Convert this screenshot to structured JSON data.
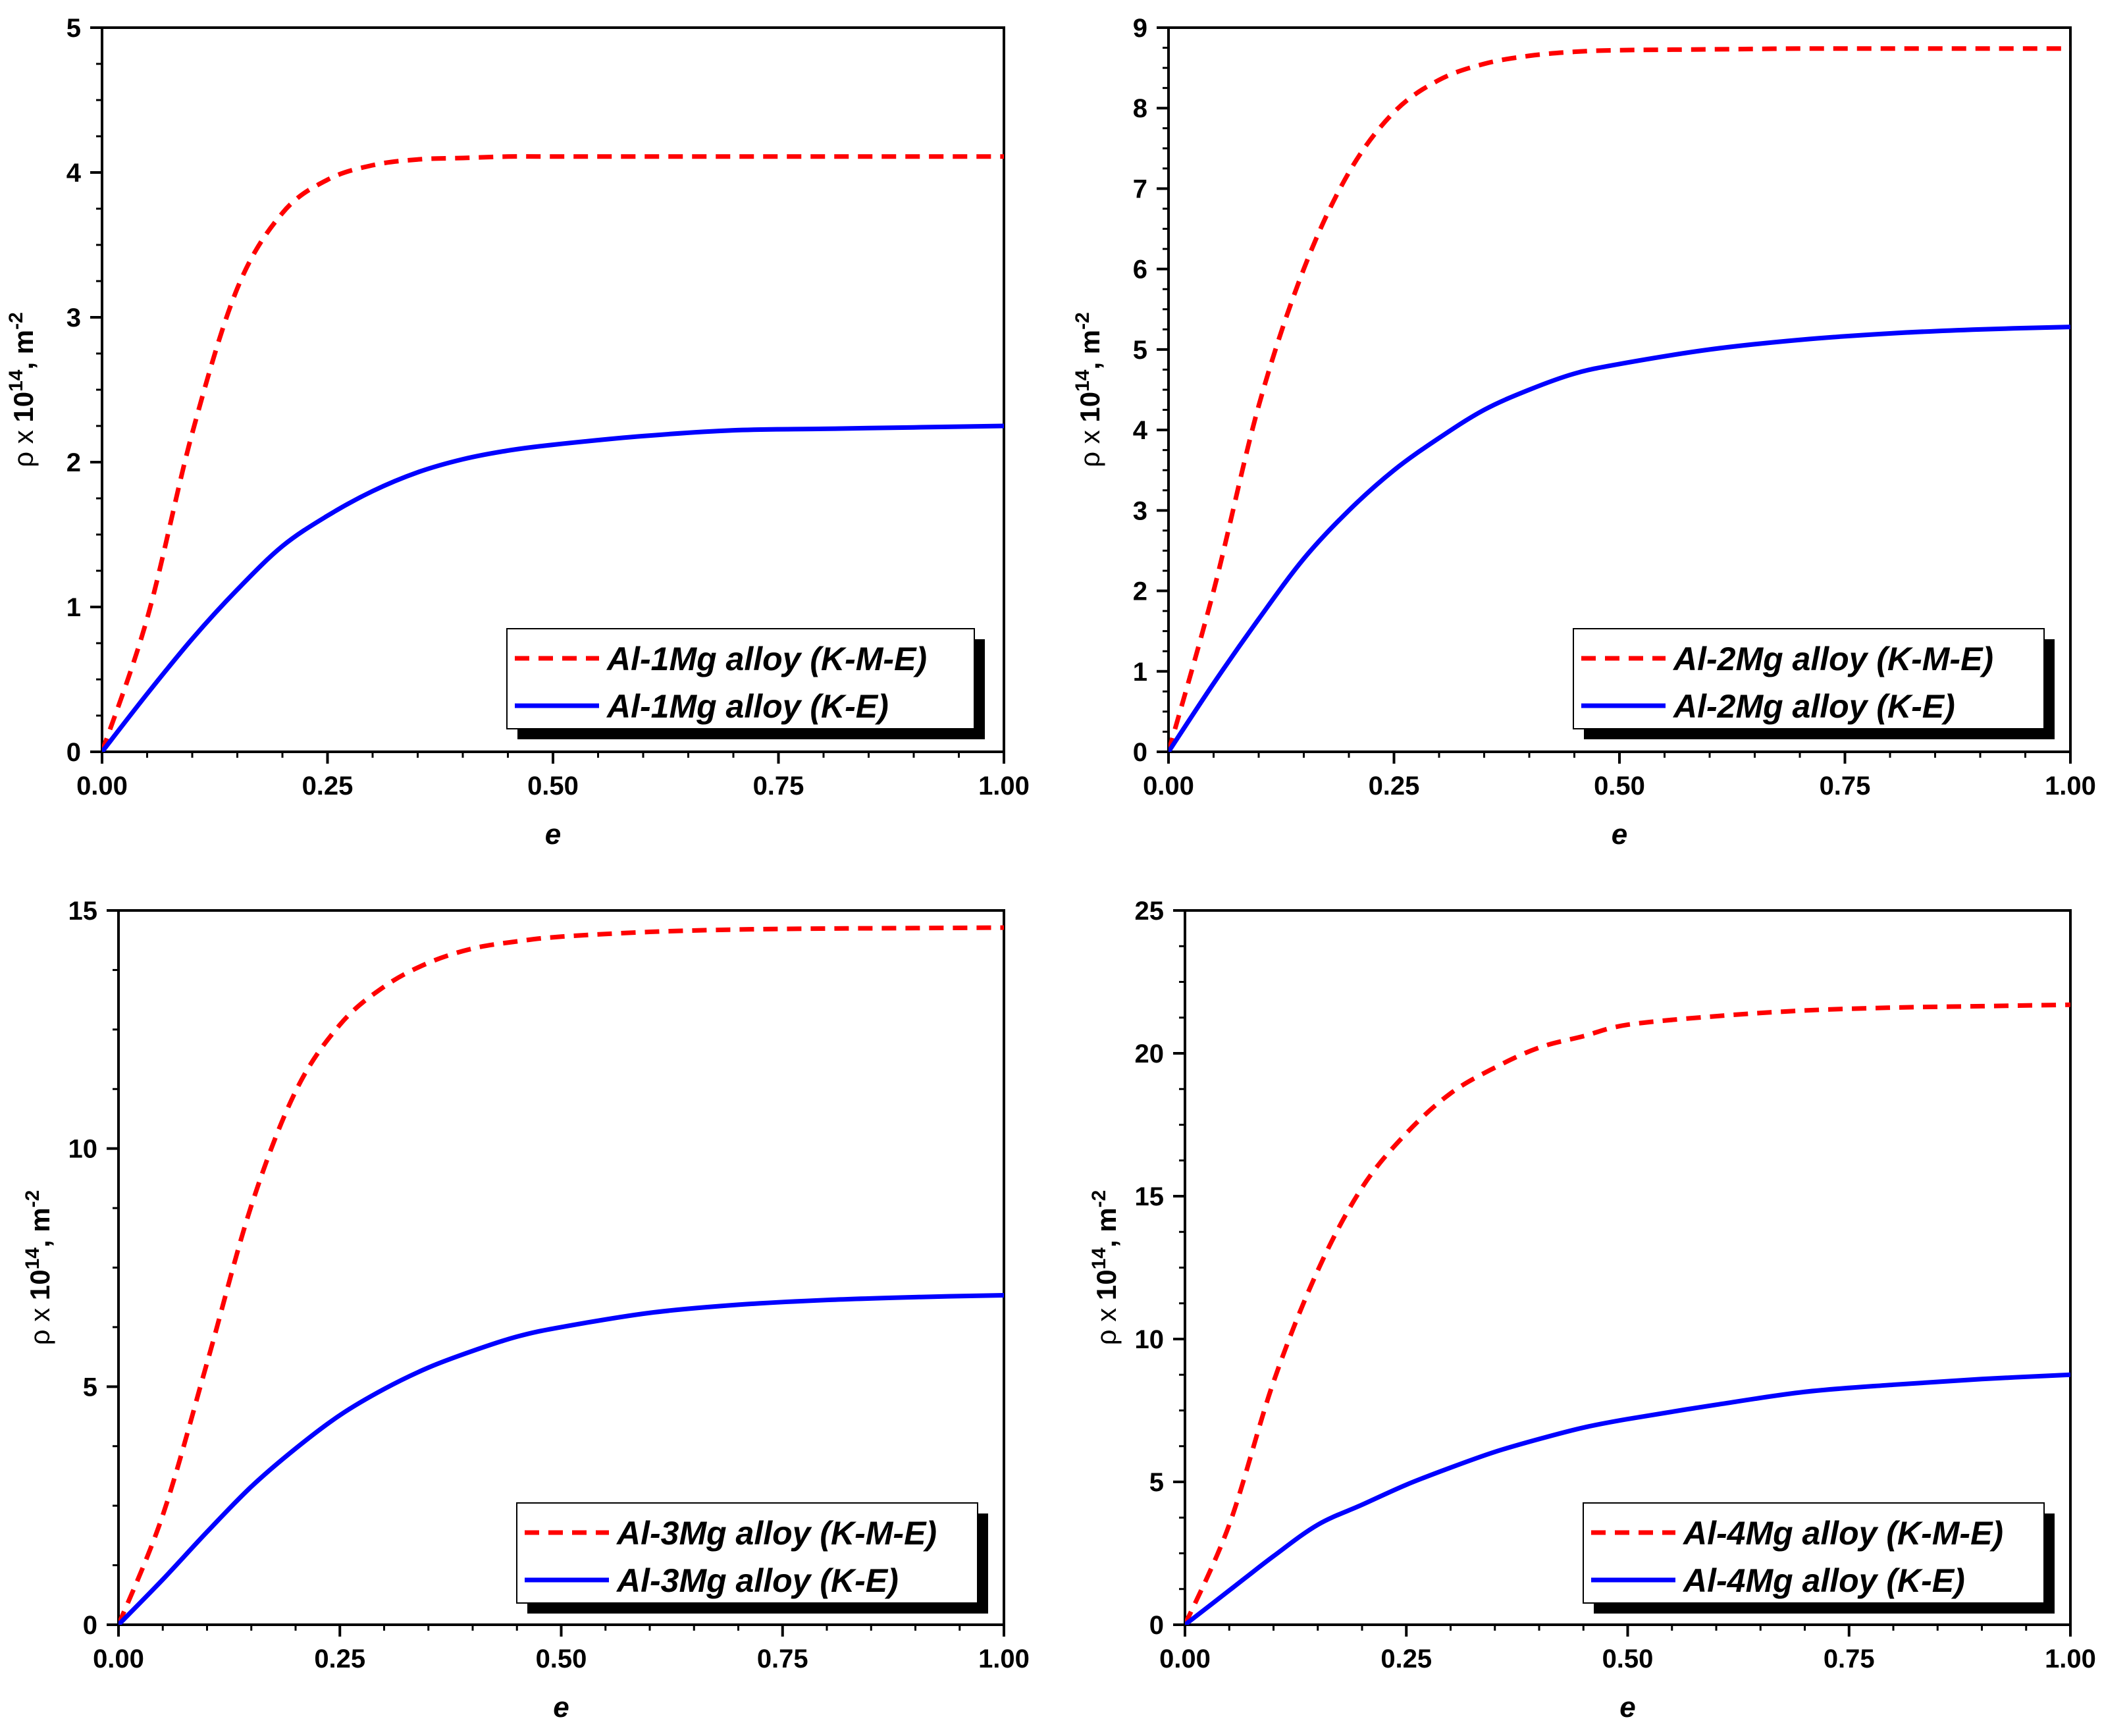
{
  "chart_data": [
    {
      "type": "line",
      "xlabel": "e",
      "ylabel": {
        "rho": "ρ",
        "times": "x",
        "base": "10",
        "exp": "14",
        "sep": ", ",
        "unit": "m",
        "unit_exp": "-2"
      },
      "xlim": [
        0,
        1
      ],
      "ylim": [
        0,
        5
      ],
      "xticks": [
        "0.00",
        "0.25",
        "0.50",
        "0.75",
        "1.00"
      ],
      "yticks": [
        "0",
        "1",
        "2",
        "3",
        "4",
        "5"
      ],
      "legend_position": "bottom-right",
      "series": [
        {
          "name": "Al-1Mg alloy (K-M-E)",
          "color": "#ff0000",
          "style": "dashed",
          "x": [
            0,
            0.05,
            0.1,
            0.15,
            0.2,
            0.25,
            0.3,
            0.35,
            0.4,
            0.45,
            0.5,
            0.6,
            0.7,
            0.8,
            0.9,
            1.0
          ],
          "y": [
            0,
            0.92,
            2.2,
            3.2,
            3.72,
            3.95,
            4.05,
            4.09,
            4.1,
            4.11,
            4.11,
            4.11,
            4.11,
            4.11,
            4.11,
            4.11
          ]
        },
        {
          "name": "Al-1Mg alloy (K-E)",
          "color": "#0000ff",
          "style": "solid",
          "x": [
            0,
            0.05,
            0.1,
            0.15,
            0.2,
            0.25,
            0.3,
            0.35,
            0.4,
            0.45,
            0.5,
            0.6,
            0.7,
            0.8,
            0.9,
            1.0
          ],
          "y": [
            0,
            0.4,
            0.78,
            1.12,
            1.42,
            1.63,
            1.8,
            1.93,
            2.02,
            2.08,
            2.12,
            2.18,
            2.22,
            2.23,
            2.24,
            2.25
          ]
        }
      ]
    },
    {
      "type": "line",
      "xlabel": "e",
      "ylabel": {
        "rho": "ρ",
        "times": "x",
        "base": "10",
        "exp": "14",
        "sep": ", ",
        "unit": "m",
        "unit_exp": "-2"
      },
      "xlim": [
        0,
        1
      ],
      "ylim": [
        0,
        9
      ],
      "xticks": [
        "0.00",
        "0.25",
        "0.50",
        "0.75",
        "1.00"
      ],
      "yticks": [
        "0",
        "1",
        "2",
        "3",
        "4",
        "5",
        "6",
        "7",
        "8",
        "9"
      ],
      "legend_position": "bottom-right",
      "series": [
        {
          "name": "Al-2Mg alloy (K-M-E)",
          "color": "#ff0000",
          "style": "dashed",
          "x": [
            0,
            0.05,
            0.1,
            0.15,
            0.2,
            0.25,
            0.3,
            0.35,
            0.4,
            0.45,
            0.5,
            0.6,
            0.7,
            0.8,
            0.9,
            1.0
          ],
          "y": [
            0,
            2.0,
            4.3,
            6.0,
            7.2,
            7.95,
            8.35,
            8.55,
            8.65,
            8.7,
            8.72,
            8.73,
            8.74,
            8.74,
            8.74,
            8.74
          ]
        },
        {
          "name": "Al-2Mg alloy (K-E)",
          "color": "#0000ff",
          "style": "solid",
          "x": [
            0,
            0.05,
            0.1,
            0.15,
            0.2,
            0.25,
            0.3,
            0.35,
            0.4,
            0.45,
            0.5,
            0.6,
            0.7,
            0.8,
            0.9,
            1.0
          ],
          "y": [
            0,
            0.85,
            1.65,
            2.4,
            3.0,
            3.5,
            3.9,
            4.25,
            4.5,
            4.7,
            4.82,
            5.0,
            5.12,
            5.2,
            5.25,
            5.28
          ]
        }
      ]
    },
    {
      "type": "line",
      "xlabel": "e",
      "ylabel": {
        "rho": "ρ",
        "times": "x",
        "base": "10",
        "exp": "14",
        "sep": ", ",
        "unit": "m",
        "unit_exp": "-2"
      },
      "xlim": [
        0,
        1
      ],
      "ylim": [
        0,
        15
      ],
      "xticks": [
        "0.00",
        "0.25",
        "0.50",
        "0.75",
        "1.00"
      ],
      "yticks": [
        "0",
        "5",
        "10",
        "15"
      ],
      "legend_position": "bottom-right",
      "series": [
        {
          "name": "Al-3Mg alloy (K-M-E)",
          "color": "#ff0000",
          "style": "dashed",
          "x": [
            0,
            0.05,
            0.1,
            0.15,
            0.2,
            0.25,
            0.3,
            0.35,
            0.4,
            0.45,
            0.5,
            0.6,
            0.7,
            0.8,
            0.9,
            1.0
          ],
          "y": [
            0,
            2.3,
            5.5,
            8.8,
            11.2,
            12.6,
            13.4,
            13.9,
            14.2,
            14.35,
            14.45,
            14.55,
            14.6,
            14.62,
            14.63,
            14.64
          ]
        },
        {
          "name": "Al-3Mg alloy (K-E)",
          "color": "#0000ff",
          "style": "solid",
          "x": [
            0,
            0.05,
            0.1,
            0.15,
            0.2,
            0.25,
            0.3,
            0.35,
            0.4,
            0.45,
            0.5,
            0.6,
            0.7,
            0.8,
            0.9,
            1.0
          ],
          "y": [
            0,
            0.95,
            1.95,
            2.9,
            3.7,
            4.4,
            4.95,
            5.4,
            5.75,
            6.05,
            6.25,
            6.55,
            6.72,
            6.82,
            6.88,
            6.92
          ]
        }
      ]
    },
    {
      "type": "line",
      "xlabel": "e",
      "ylabel": {
        "rho": "ρ",
        "times": "x",
        "base": "10",
        "exp": "14",
        "sep": ", ",
        "unit": "m",
        "unit_exp": "-2"
      },
      "xlim": [
        0,
        1
      ],
      "ylim": [
        0,
        25
      ],
      "xticks": [
        "0.00",
        "0.25",
        "0.50",
        "0.75",
        "1.00"
      ],
      "yticks": [
        "0",
        "5",
        "10",
        "15",
        "20",
        "25"
      ],
      "legend_position": "bottom-right",
      "series": [
        {
          "name": "Al-4Mg alloy (K-M-E)",
          "color": "#ff0000",
          "style": "dashed",
          "x": [
            0,
            0.05,
            0.1,
            0.15,
            0.2,
            0.25,
            0.3,
            0.35,
            0.4,
            0.45,
            0.5,
            0.6,
            0.7,
            0.8,
            0.9,
            1.0
          ],
          "y": [
            0,
            3.5,
            8.5,
            12.4,
            15.3,
            17.2,
            18.6,
            19.5,
            20.2,
            20.6,
            21.0,
            21.3,
            21.5,
            21.6,
            21.65,
            21.7
          ]
        },
        {
          "name": "Al-4Mg alloy (K-E)",
          "color": "#0000ff",
          "style": "solid",
          "x": [
            0,
            0.05,
            0.1,
            0.15,
            0.2,
            0.25,
            0.3,
            0.35,
            0.4,
            0.45,
            0.5,
            0.6,
            0.7,
            0.8,
            0.9,
            1.0
          ],
          "y": [
            0,
            1.2,
            2.4,
            3.5,
            4.2,
            4.9,
            5.5,
            6.05,
            6.5,
            6.9,
            7.2,
            7.7,
            8.15,
            8.4,
            8.6,
            8.75
          ]
        }
      ]
    }
  ]
}
